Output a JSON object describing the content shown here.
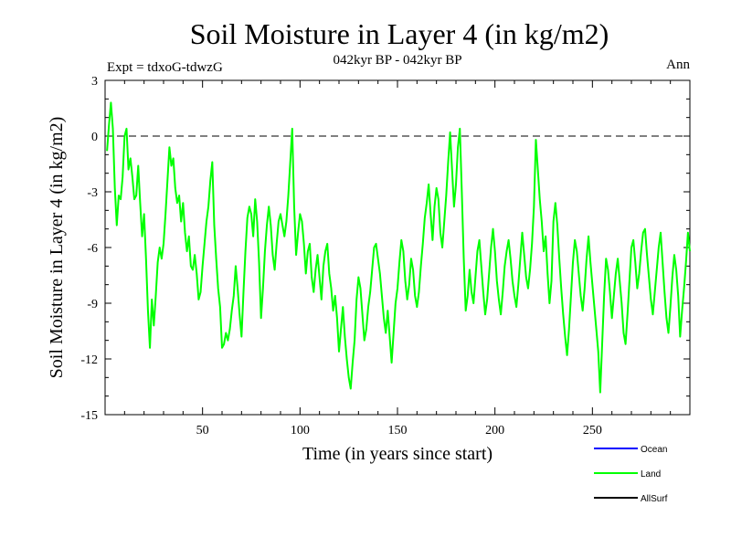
{
  "chart_data": {
    "type": "line",
    "title": "Soil Moisture in Layer 4 (in kg/m2)",
    "subtitle": "042kyr BP - 042kyr BP",
    "expt_label": "Expt = tdxoG-tdwzG",
    "period_label": "Ann",
    "xlabel": "Time (in years since start)",
    "ylabel": "Soil Moisture in Layer 4 (in kg/m2)",
    "xlim": [
      0,
      300
    ],
    "ylim": [
      -15,
      3
    ],
    "x_ticks": [
      50,
      100,
      150,
      200,
      250
    ],
    "y_ticks": [
      3,
      0,
      -3,
      -6,
      -9,
      -12,
      -15
    ],
    "reference_line": 0,
    "legend": {
      "position": "bottom-right",
      "entries": [
        {
          "name": "Ocean",
          "color": "#0000ff"
        },
        {
          "name": "Land",
          "color": "#00ff00"
        },
        {
          "name": "AllSurf",
          "color": "#000000"
        }
      ]
    },
    "series": [
      {
        "name": "Land",
        "color": "#00ff00",
        "x_start": 1,
        "x_step": 1,
        "values": [
          -0.8,
          0.6,
          1.8,
          0.4,
          -2.8,
          -4.8,
          -3.2,
          -3.4,
          -2.2,
          0.0,
          0.4,
          -1.8,
          -1.2,
          -2.2,
          -3.4,
          -3.2,
          -1.6,
          -3.6,
          -5.4,
          -4.2,
          -6.6,
          -9.4,
          -11.4,
          -8.8,
          -10.2,
          -8.6,
          -6.8,
          -6.0,
          -6.6,
          -5.8,
          -4.2,
          -2.4,
          -0.6,
          -1.6,
          -1.2,
          -2.8,
          -3.6,
          -3.2,
          -4.6,
          -3.6,
          -5.2,
          -6.2,
          -5.4,
          -7.0,
          -7.2,
          -6.4,
          -7.4,
          -8.8,
          -8.4,
          -7.0,
          -5.8,
          -4.6,
          -3.8,
          -2.4,
          -1.4,
          -4.8,
          -6.6,
          -8.2,
          -9.2,
          -11.4,
          -11.2,
          -10.6,
          -11.0,
          -10.4,
          -9.4,
          -8.6,
          -7.0,
          -8.2,
          -9.6,
          -10.8,
          -8.4,
          -6.2,
          -4.4,
          -3.8,
          -4.2,
          -5.4,
          -3.4,
          -4.6,
          -6.8,
          -9.8,
          -8.2,
          -6.2,
          -4.8,
          -3.8,
          -4.8,
          -6.4,
          -7.2,
          -5.8,
          -4.6,
          -4.2,
          -4.8,
          -5.4,
          -4.6,
          -3.2,
          -1.4,
          0.4,
          -3.8,
          -6.4,
          -5.2,
          -4.2,
          -4.6,
          -5.8,
          -7.4,
          -6.2,
          -5.8,
          -7.6,
          -8.4,
          -7.2,
          -6.4,
          -7.6,
          -8.8,
          -7.0,
          -6.2,
          -5.8,
          -7.4,
          -8.2,
          -9.4,
          -8.6,
          -9.8,
          -11.6,
          -10.4,
          -9.2,
          -10.8,
          -12.0,
          -13.0,
          -13.6,
          -12.2,
          -11.0,
          -8.8,
          -7.6,
          -8.2,
          -9.6,
          -11.0,
          -10.4,
          -9.2,
          -8.4,
          -7.2,
          -6.0,
          -5.8,
          -6.6,
          -7.4,
          -8.6,
          -9.8,
          -10.6,
          -9.4,
          -10.8,
          -12.2,
          -10.6,
          -9.0,
          -8.2,
          -6.8,
          -5.6,
          -6.2,
          -7.8,
          -8.8,
          -8.0,
          -6.6,
          -7.2,
          -8.6,
          -9.2,
          -8.4,
          -7.0,
          -5.8,
          -4.4,
          -3.6,
          -2.6,
          -4.2,
          -5.6,
          -3.8,
          -2.8,
          -3.4,
          -5.2,
          -6.0,
          -4.6,
          -3.2,
          -1.4,
          0.2,
          -1.8,
          -3.8,
          -2.6,
          -0.6,
          0.4,
          -3.0,
          -6.6,
          -9.4,
          -8.6,
          -7.2,
          -8.4,
          -9.0,
          -7.6,
          -6.2,
          -5.6,
          -7.0,
          -8.4,
          -9.6,
          -8.8,
          -7.4,
          -6.0,
          -5.0,
          -6.2,
          -7.8,
          -8.8,
          -9.6,
          -8.4,
          -7.0,
          -6.2,
          -5.6,
          -6.6,
          -7.8,
          -8.6,
          -9.2,
          -8.0,
          -6.6,
          -5.2,
          -6.4,
          -7.6,
          -8.2,
          -7.2,
          -5.8,
          -3.8,
          -0.2,
          -1.8,
          -3.4,
          -4.6,
          -6.2,
          -5.4,
          -7.4,
          -9.0,
          -7.8,
          -4.6,
          -3.6,
          -4.8,
          -6.6,
          -8.2,
          -9.6,
          -10.8,
          -11.8,
          -10.4,
          -8.6,
          -6.8,
          -5.6,
          -6.2,
          -7.4,
          -8.6,
          -9.4,
          -8.2,
          -6.6,
          -5.4,
          -6.8,
          -8.0,
          -9.2,
          -10.4,
          -11.6,
          -13.8,
          -11.2,
          -8.6,
          -6.6,
          -7.2,
          -8.4,
          -9.8,
          -8.6,
          -7.4,
          -6.6,
          -7.8,
          -9.0,
          -10.6,
          -11.2,
          -9.6,
          -7.8,
          -6.0,
          -5.6,
          -6.8,
          -8.2,
          -7.4,
          -6.2,
          -5.2,
          -5.0,
          -6.4,
          -7.6,
          -8.8,
          -9.6,
          -8.4,
          -7.2,
          -6.0,
          -5.2,
          -6.8,
          -8.4,
          -9.8,
          -10.6,
          -9.2,
          -7.6,
          -6.4,
          -7.2,
          -8.6,
          -10.8,
          -9.4,
          -8.2,
          -6.8,
          -5.2,
          -6.2
        ]
      }
    ]
  }
}
